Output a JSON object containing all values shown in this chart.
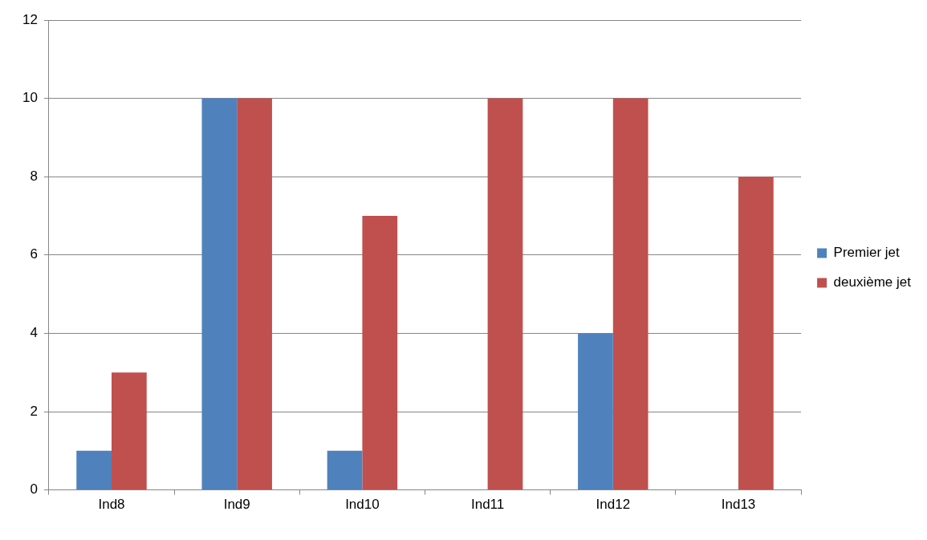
{
  "chart_data": {
    "type": "bar",
    "categories": [
      "Ind8",
      "Ind9",
      "Ind10",
      "Ind11",
      "Ind12",
      "Ind13"
    ],
    "series": [
      {
        "name": "Premier jet",
        "color": "#4f81bd",
        "values": [
          1,
          10,
          1,
          0,
          4,
          0
        ]
      },
      {
        "name": "deuxième jet",
        "color": "#c0504d",
        "values": [
          3,
          10,
          7,
          10,
          10,
          8
        ]
      }
    ],
    "ylim": [
      0,
      12
    ],
    "yticks": [
      0,
      2,
      4,
      6,
      8,
      10,
      12
    ],
    "grid": "y",
    "legend": "right"
  }
}
